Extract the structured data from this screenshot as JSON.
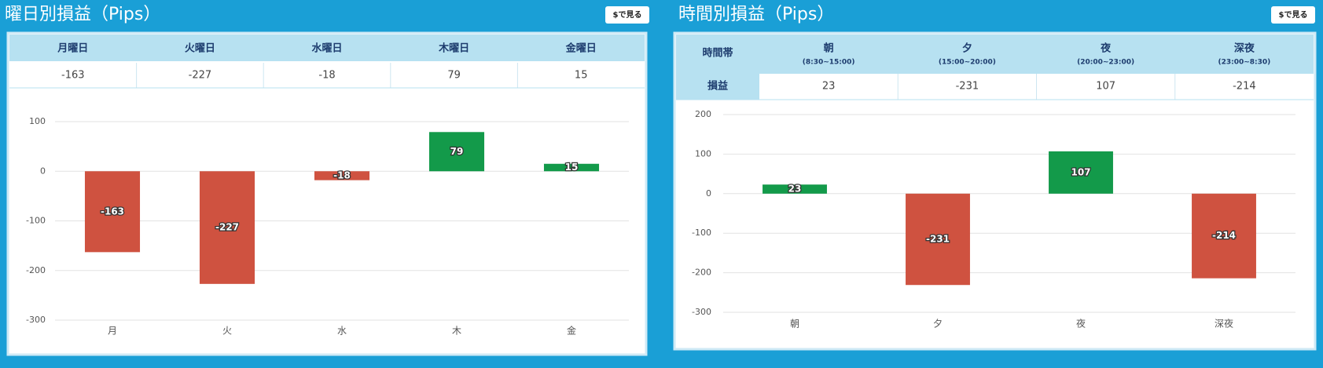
{
  "panels": [
    {
      "title": "曜日別損益（Pips）",
      "button": "$で見る",
      "table": {
        "header": [
          "月曜日",
          "火曜日",
          "水曜日",
          "木曜日",
          "金曜日"
        ]
      }
    },
    {
      "title": "時間別損益（Pips）",
      "button": "$で見る",
      "table": {
        "row_labels": [
          "時間帯",
          "損益"
        ],
        "sub_header": [
          "(8:30~15:00)",
          "(15:00~20:00)",
          "(20:00~23:00)",
          "(23:00~8:30)"
        ]
      }
    }
  ],
  "chart_data": [
    {
      "type": "bar",
      "categories": [
        "月",
        "火",
        "水",
        "木",
        "金"
      ],
      "values": [
        -163,
        -227,
        -18,
        79,
        15
      ],
      "positive_color": "#139a4a",
      "negative_color": "#cf5240",
      "ylim": [
        -300,
        100
      ],
      "yticks": [
        -300,
        -200,
        -100,
        0,
        100
      ],
      "grid": true
    },
    {
      "type": "bar",
      "categories": [
        "朝",
        "夕",
        "夜",
        "深夜"
      ],
      "values": [
        23,
        -231,
        107,
        -214
      ],
      "positive_color": "#139a4a",
      "negative_color": "#cf5240",
      "ylim": [
        -300,
        200
      ],
      "yticks": [
        -300,
        -200,
        -100,
        0,
        100,
        200
      ],
      "grid": true
    }
  ]
}
